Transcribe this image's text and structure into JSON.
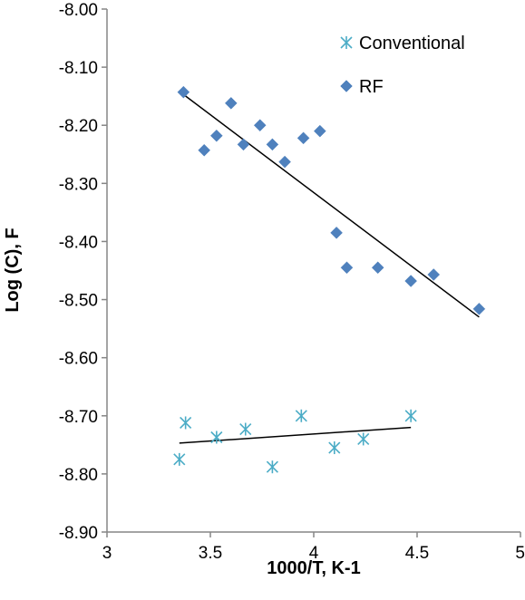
{
  "chart_data": {
    "type": "scatter",
    "title": "",
    "xlabel": "1000/T, K-1",
    "ylabel": "Log (C), F",
    "xlim": [
      3,
      5
    ],
    "ylim": [
      -8.9,
      -8.0
    ],
    "xticks": [
      "3",
      "3.5",
      "4",
      "4.5",
      "5"
    ],
    "yticks": [
      "-8.00",
      "-8.10",
      "-8.20",
      "-8.30",
      "-8.40",
      "-8.50",
      "-8.60",
      "-8.70",
      "-8.80",
      "-8.90"
    ],
    "grid": false,
    "legend_position": "top-right",
    "series": [
      {
        "name": "Conventional",
        "marker": "asterisk",
        "color": "#4bacc6",
        "points": [
          [
            3.35,
            -8.775
          ],
          [
            3.38,
            -8.712
          ],
          [
            3.53,
            -8.737
          ],
          [
            3.67,
            -8.723
          ],
          [
            3.8,
            -8.788
          ],
          [
            3.94,
            -8.7
          ],
          [
            4.1,
            -8.755
          ],
          [
            4.24,
            -8.74
          ],
          [
            4.47,
            -8.7
          ]
        ],
        "trendline": {
          "x": [
            3.35,
            4.47
          ],
          "y": [
            -8.747,
            -8.72
          ]
        }
      },
      {
        "name": "RF",
        "marker": "diamond",
        "color": "#4f81bd",
        "points": [
          [
            3.37,
            -8.143
          ],
          [
            3.47,
            -8.243
          ],
          [
            3.53,
            -8.218
          ],
          [
            3.6,
            -8.162
          ],
          [
            3.66,
            -8.233
          ],
          [
            3.74,
            -8.2
          ],
          [
            3.8,
            -8.233
          ],
          [
            3.86,
            -8.263
          ],
          [
            3.95,
            -8.222
          ],
          [
            4.03,
            -8.21
          ],
          [
            4.11,
            -8.385
          ],
          [
            4.16,
            -8.445
          ],
          [
            4.31,
            -8.445
          ],
          [
            4.47,
            -8.468
          ],
          [
            4.58,
            -8.457
          ],
          [
            4.8,
            -8.516
          ]
        ],
        "trendline": {
          "x": [
            3.37,
            4.8
          ],
          "y": [
            -8.147,
            -8.53
          ]
        }
      }
    ]
  }
}
